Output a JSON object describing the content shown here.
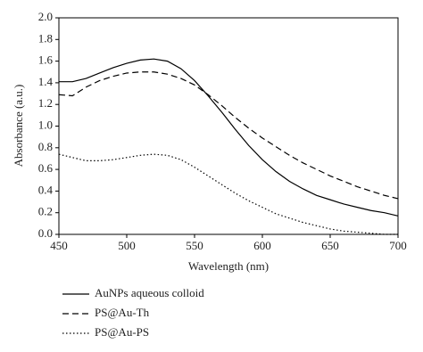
{
  "chart_data": {
    "type": "line",
    "xlabel": "Wavelength (nm)",
    "ylabel": "Absorbance (a.u.)",
    "x": [
      450,
      460,
      470,
      480,
      490,
      500,
      510,
      520,
      530,
      540,
      550,
      560,
      570,
      580,
      590,
      600,
      610,
      620,
      630,
      640,
      650,
      660,
      670,
      680,
      690,
      700
    ],
    "series": [
      {
        "name": "AuNPs aqueous colloid",
        "color": "#000000",
        "dash": "solid",
        "values": [
          1.41,
          1.41,
          1.44,
          1.49,
          1.54,
          1.58,
          1.61,
          1.62,
          1.6,
          1.53,
          1.42,
          1.28,
          1.13,
          0.97,
          0.82,
          0.69,
          0.58,
          0.49,
          0.42,
          0.36,
          0.32,
          0.28,
          0.25,
          0.22,
          0.2,
          0.17
        ]
      },
      {
        "name": "PS@Au-Th",
        "color": "#000000",
        "dash": "dashed",
        "values": [
          1.29,
          1.28,
          1.36,
          1.42,
          1.46,
          1.49,
          1.5,
          1.5,
          1.48,
          1.44,
          1.38,
          1.29,
          1.19,
          1.08,
          0.98,
          0.89,
          0.81,
          0.73,
          0.66,
          0.6,
          0.54,
          0.49,
          0.44,
          0.4,
          0.36,
          0.33
        ]
      },
      {
        "name": "PS@Au-PS",
        "color": "#000000",
        "dash": "dotted",
        "values": [
          0.74,
          0.71,
          0.68,
          0.68,
          0.69,
          0.71,
          0.73,
          0.74,
          0.73,
          0.69,
          0.62,
          0.54,
          0.46,
          0.38,
          0.31,
          0.25,
          0.19,
          0.15,
          0.11,
          0.08,
          0.05,
          0.03,
          0.02,
          0.01,
          0.0,
          0.0
        ]
      }
    ],
    "xlim": [
      450,
      700
    ],
    "xticks": [
      450,
      500,
      550,
      600,
      650,
      700
    ],
    "ylim": [
      0,
      2
    ],
    "yticks": [
      {
        "value": 0,
        "label": "0.0"
      },
      {
        "value": 0.2,
        "label": "0.2"
      },
      {
        "value": 0.4,
        "label": "0.4"
      },
      {
        "value": 0.6,
        "label": "0.6"
      },
      {
        "value": 0.8,
        "label": "0.8"
      },
      {
        "value": 1,
        "label": "1.0"
      },
      {
        "value": 1.2,
        "label": "1.2"
      },
      {
        "value": 1.4,
        "label": "1.4"
      },
      {
        "value": 1.6,
        "label": "1.6"
      },
      {
        "value": 1.8,
        "label": "1.8"
      },
      {
        "value": 2,
        "label": "2.0"
      }
    ],
    "grid": false,
    "legend": "bottom"
  }
}
